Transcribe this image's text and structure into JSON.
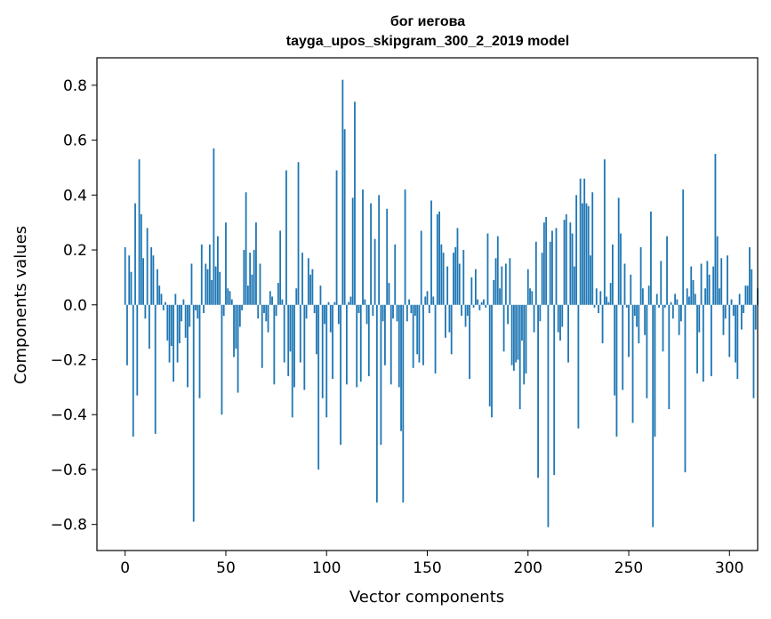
{
  "chart_data": {
    "type": "bar",
    "title": "бог иегова",
    "subtitle": "tayga_upos_skipgram_300_2_2019 model",
    "xlabel": "Vector components",
    "ylabel": "Components values",
    "xlim": [
      -14,
      314
    ],
    "ylim": [
      -0.895,
      0.9
    ],
    "xticks": [
      0,
      50,
      100,
      150,
      200,
      250,
      300
    ],
    "xtick_labels": [
      "0",
      "50",
      "100",
      "150",
      "200",
      "250",
      "300"
    ],
    "yticks": [
      -0.8,
      -0.6,
      -0.4,
      -0.2,
      0.0,
      0.2,
      0.4,
      0.6,
      0.8
    ],
    "ytick_labels": [
      "−0.8",
      "−0.6",
      "−0.4",
      "−0.2",
      "0.0",
      "0.2",
      "0.4",
      "0.6",
      "0.8"
    ],
    "bar_color": "#1f77b4",
    "grid": false,
    "values": [
      0.21,
      -0.22,
      0.18,
      0.12,
      -0.48,
      0.37,
      -0.33,
      0.53,
      0.33,
      0.17,
      -0.05,
      0.28,
      -0.16,
      0.21,
      0.18,
      -0.47,
      0.13,
      0.07,
      0.04,
      -0.02,
      0.01,
      -0.13,
      -0.21,
      -0.15,
      -0.28,
      0.04,
      -0.21,
      -0.14,
      -0.06,
      0.02,
      -0.12,
      -0.3,
      -0.08,
      0.15,
      -0.79,
      -0.02,
      -0.05,
      -0.34,
      0.22,
      -0.03,
      0.15,
      0.13,
      0.22,
      0.09,
      0.57,
      0.14,
      0.25,
      0.12,
      -0.4,
      -0.04,
      0.3,
      0.06,
      0.05,
      0.02,
      -0.19,
      -0.16,
      -0.32,
      -0.08,
      -0.02,
      0.2,
      0.41,
      0.07,
      0.19,
      0.11,
      0.2,
      0.3,
      -0.05,
      0.15,
      -0.23,
      -0.03,
      -0.06,
      -0.1,
      0.05,
      0.03,
      -0.29,
      -0.04,
      0.08,
      0.27,
      0.02,
      -0.21,
      0.49,
      -0.26,
      -0.17,
      -0.41,
      -0.3,
      0.06,
      0.52,
      -0.21,
      0.19,
      -0.31,
      -0.05,
      0.17,
      0.11,
      0.13,
      -0.03,
      -0.18,
      -0.6,
      0.07,
      -0.34,
      -0.07,
      -0.41,
      0.01,
      -0.1,
      -0.27,
      0.01,
      0.49,
      -0.07,
      -0.51,
      0.82,
      0.64,
      -0.29,
      0.01,
      0.03,
      0.39,
      0.74,
      -0.3,
      -0.03,
      -0.28,
      0.42,
      0.02,
      -0.07,
      -0.26,
      0.37,
      -0.04,
      0.24,
      -0.72,
      0.4,
      -0.51,
      -0.06,
      -0.22,
      0.35,
      0.08,
      -0.29,
      -0.05,
      0.22,
      -0.06,
      -0.3,
      -0.46,
      -0.72,
      0.42,
      -0.06,
      0.02,
      -0.03,
      -0.23,
      -0.04,
      -0.18,
      -0.21,
      0.27,
      -0.22,
      0.03,
      0.05,
      -0.03,
      0.38,
      0.03,
      -0.25,
      0.33,
      0.34,
      0.22,
      0.19,
      -0.12,
      0.14,
      -0.1,
      -0.18,
      0.19,
      0.21,
      0.28,
      0.15,
      -0.04,
      0.2,
      -0.08,
      -0.04,
      -0.27,
      0.1,
      -0.01,
      0.13,
      0.02,
      -0.02,
      0.01,
      0.02,
      -0.01,
      0.26,
      -0.37,
      -0.41,
      0.09,
      0.17,
      0.25,
      0.06,
      0.14,
      -0.17,
      0.15,
      -0.07,
      0.17,
      -0.22,
      -0.24,
      -0.21,
      -0.2,
      -0.38,
      -0.13,
      -0.29,
      -0.25,
      0.13,
      0.06,
      0.05,
      -0.1,
      0.23,
      -0.63,
      -0.06,
      0.19,
      0.3,
      0.32,
      -0.81,
      0.23,
      0.27,
      -0.62,
      0.28,
      -0.1,
      -0.13,
      -0.08,
      0.31,
      0.33,
      -0.21,
      0.3,
      0.26,
      0.14,
      0.4,
      -0.45,
      0.46,
      0.37,
      0.46,
      0.37,
      0.36,
      0.18,
      0.41,
      -0.01,
      0.06,
      -0.03,
      0.05,
      -0.14,
      0.53,
      0.03,
      0.01,
      0.08,
      0.22,
      -0.33,
      -0.48,
      0.39,
      0.26,
      -0.31,
      0.15,
      -0.01,
      -0.19,
      0.11,
      -0.43,
      -0.04,
      -0.08,
      -0.14,
      0.21,
      0.06,
      -0.11,
      -0.34,
      0.07,
      0.34,
      -0.81,
      -0.48,
      0.04,
      -0.01,
      0.16,
      -0.17,
      -0.01,
      0.25,
      -0.38,
      0.01,
      -0.05,
      0.04,
      0.02,
      -0.11,
      -0.06,
      0.42,
      -0.61,
      0.06,
      0.03,
      0.14,
      0.09,
      0.04,
      -0.25,
      -0.1,
      0.15,
      -0.28,
      0.06,
      0.16,
      0.11,
      -0.26,
      0.14,
      0.55,
      0.25,
      0.06,
      0.17,
      -0.11,
      -0.05,
      0.18,
      -0.19,
      0.02,
      -0.04,
      -0.21,
      -0.27,
      0.04,
      -0.09,
      -0.03,
      0.07,
      0.07,
      0.21,
      0.13,
      -0.34,
      -0.09,
      0.06
    ]
  }
}
